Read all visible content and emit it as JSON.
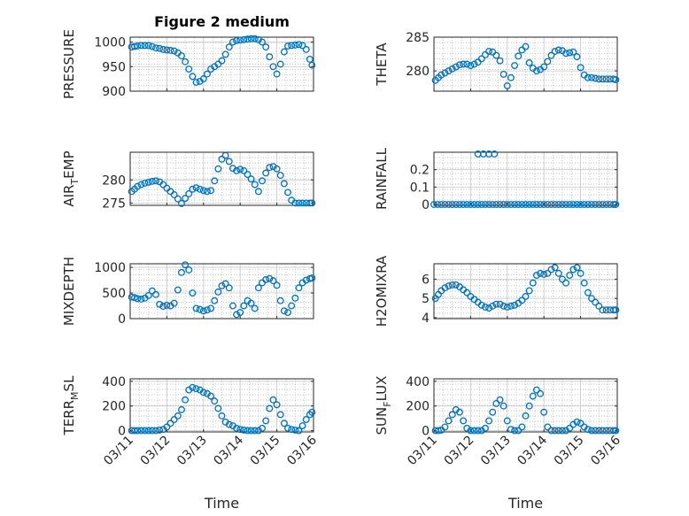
{
  "chart_data": {
    "type": "scatter",
    "title": "Figure 2 medium",
    "marker_color": "#0072BD",
    "marker": "open-circle",
    "grid": "dotted",
    "x_domain_days": [
      "03/11",
      "03/16"
    ],
    "x_tick_labels": [
      "03/11",
      "03/12",
      "03/13",
      "03/14",
      "03/15",
      "03/16"
    ],
    "xlabel": "Time",
    "panels": [
      {
        "id": "pressure",
        "ylabel": "PRESSURE",
        "ylabel_sub": "",
        "ylabel_tail": "",
        "ylim": [
          900,
          1010
        ],
        "yticks": [
          900,
          950,
          1000
        ],
        "ytick_labels": [
          "900",
          "950",
          "1000"
        ],
        "x": [
          0.04,
          0.12,
          0.2,
          0.3,
          0.4,
          0.5,
          0.6,
          0.7,
          0.8,
          0.9,
          1.0,
          1.1,
          1.2,
          1.3,
          1.4,
          1.5,
          1.6,
          1.7,
          1.8,
          1.9,
          2.0,
          2.1,
          2.2,
          2.3,
          2.4,
          2.5,
          2.6,
          2.7,
          2.8,
          2.9,
          3.0,
          3.1,
          3.2,
          3.3,
          3.4,
          3.5,
          3.6,
          3.7,
          3.8,
          3.9,
          4.0,
          4.1,
          4.2,
          4.3,
          4.4,
          4.5,
          4.6,
          4.7,
          4.8,
          4.9,
          4.96
        ],
        "y": [
          990,
          991,
          992,
          993,
          993,
          993,
          991,
          988,
          987,
          985,
          984,
          983,
          982,
          978,
          972,
          960,
          945,
          930,
          918,
          920,
          925,
          935,
          945,
          950,
          955,
          962,
          975,
          990,
          1000,
          1003,
          1004,
          1005,
          1006,
          1007,
          1007,
          1005,
          1000,
          990,
          970,
          950,
          935,
          955,
          980,
          992,
          993,
          994,
          995,
          993,
          985,
          965,
          953
        ]
      },
      {
        "id": "theta",
        "ylabel": "THETA",
        "ylabel_sub": "",
        "ylabel_tail": "",
        "ylim": [
          277,
          285
        ],
        "yticks": [
          280,
          285
        ],
        "ytick_labels": [
          "280",
          "285"
        ],
        "x": [
          0.04,
          0.12,
          0.2,
          0.3,
          0.4,
          0.5,
          0.6,
          0.7,
          0.8,
          0.9,
          1.0,
          1.1,
          1.2,
          1.3,
          1.4,
          1.5,
          1.6,
          1.7,
          1.8,
          1.9,
          2.0,
          2.1,
          2.2,
          2.3,
          2.4,
          2.5,
          2.6,
          2.7,
          2.8,
          2.9,
          3.0,
          3.1,
          3.2,
          3.3,
          3.4,
          3.5,
          3.6,
          3.7,
          3.8,
          3.9,
          4.0,
          4.1,
          4.2,
          4.3,
          4.4,
          4.5,
          4.6,
          4.7,
          4.8,
          4.9,
          4.96
        ],
        "y": [
          278.6,
          279.0,
          279.4,
          279.7,
          280.0,
          280.3,
          280.6,
          280.9,
          281.0,
          281.0,
          280.8,
          281.0,
          281.3,
          281.8,
          282.4,
          282.9,
          282.8,
          282.3,
          281.5,
          279.5,
          277.8,
          279.0,
          280.8,
          282.2,
          283.1,
          283.6,
          281.2,
          280.4,
          280.0,
          280.2,
          280.6,
          281.4,
          282.3,
          282.9,
          283.1,
          283.0,
          282.6,
          282.7,
          282.8,
          282.1,
          280.5,
          279.4,
          279.0,
          279.0,
          278.9,
          278.8,
          278.8,
          278.8,
          278.8,
          278.8,
          278.7
        ]
      },
      {
        "id": "air-temp",
        "ylabel": "AIR",
        "ylabel_sub": "T",
        "ylabel_tail": "EMP",
        "ylim": [
          274.5,
          286
        ],
        "yticks": [
          275,
          280
        ],
        "ytick_labels": [
          "275",
          "280"
        ],
        "x": [
          0.04,
          0.12,
          0.2,
          0.3,
          0.4,
          0.5,
          0.6,
          0.7,
          0.8,
          0.9,
          1.0,
          1.1,
          1.2,
          1.3,
          1.4,
          1.5,
          1.6,
          1.7,
          1.8,
          1.9,
          2.0,
          2.1,
          2.2,
          2.3,
          2.4,
          2.5,
          2.6,
          2.7,
          2.8,
          2.9,
          3.0,
          3.1,
          3.2,
          3.3,
          3.4,
          3.5,
          3.6,
          3.7,
          3.8,
          3.9,
          4.0,
          4.1,
          4.2,
          4.3,
          4.4,
          4.5,
          4.6,
          4.7,
          4.8,
          4.9,
          4.96
        ],
        "y": [
          277.5,
          278.0,
          278.6,
          279.0,
          279.3,
          279.5,
          279.7,
          279.8,
          279.6,
          279.0,
          278.2,
          277.5,
          276.8,
          275.9,
          274.9,
          276.0,
          277.0,
          278.0,
          278.3,
          278.0,
          277.7,
          277.5,
          277.7,
          279.8,
          282.4,
          284.5,
          285.3,
          284.0,
          282.5,
          282.0,
          282.3,
          282.0,
          281.2,
          280.2,
          279.0,
          277.5,
          279.8,
          281.5,
          282.7,
          282.9,
          282.4,
          281.0,
          279.2,
          277.3,
          275.6,
          275.0,
          275.0,
          275.0,
          275.0,
          275.0,
          275.0
        ]
      },
      {
        "id": "rainfall",
        "ylabel": "RAINFALL",
        "ylabel_sub": "",
        "ylabel_tail": "",
        "ylim": [
          -0.005,
          0.3
        ],
        "yticks": [
          0,
          0.1,
          0.2
        ],
        "ytick_labels": [
          "0",
          "0.1",
          "0.2"
        ],
        "x": [
          0.0,
          0.1,
          0.2,
          0.3,
          0.4,
          0.5,
          0.6,
          0.7,
          0.8,
          0.9,
          1.0,
          1.1,
          1.2,
          1.3,
          1.4,
          1.5,
          1.6,
          1.7,
          1.8,
          1.9,
          2.0,
          2.1,
          2.2,
          2.3,
          2.4,
          2.5,
          2.6,
          2.7,
          2.8,
          2.9,
          3.0,
          3.1,
          3.2,
          3.3,
          3.4,
          3.5,
          3.6,
          3.7,
          3.8,
          3.9,
          4.0,
          4.1,
          4.2,
          4.3,
          4.4,
          4.5,
          4.6,
          4.7,
          4.8,
          4.9,
          4.96,
          1.2,
          1.35,
          1.5,
          1.65
        ],
        "y": [
          0,
          0,
          0,
          0,
          0,
          0,
          0,
          0,
          0,
          0,
          0,
          0,
          0,
          0,
          0,
          0,
          0,
          0,
          0,
          0,
          0,
          0,
          0,
          0,
          0,
          0,
          0,
          0,
          0,
          0,
          0,
          0,
          0,
          0,
          0,
          0,
          0,
          0,
          0,
          0,
          0,
          0,
          0,
          0,
          0,
          0,
          0,
          0,
          0,
          0,
          0,
          0.29,
          0.29,
          0.29,
          0.29
        ]
      },
      {
        "id": "mixdepth",
        "ylabel": "MIXDEPTH",
        "ylabel_sub": "",
        "ylabel_tail": "",
        "ylim": [
          0,
          1070
        ],
        "yticks": [
          0,
          500,
          1000
        ],
        "ytick_labels": [
          "0",
          "500",
          "1000"
        ],
        "x": [
          0.04,
          0.12,
          0.2,
          0.3,
          0.4,
          0.5,
          0.6,
          0.7,
          0.8,
          0.9,
          1.0,
          1.1,
          1.2,
          1.3,
          1.4,
          1.5,
          1.6,
          1.7,
          1.8,
          1.9,
          2.0,
          2.1,
          2.2,
          2.3,
          2.4,
          2.5,
          2.6,
          2.7,
          2.8,
          2.9,
          3.0,
          3.1,
          3.2,
          3.3,
          3.4,
          3.5,
          3.6,
          3.7,
          3.8,
          3.9,
          4.0,
          4.1,
          4.2,
          4.3,
          4.4,
          4.5,
          4.6,
          4.7,
          4.8,
          4.9,
          4.96
        ],
        "y": [
          420,
          410,
          390,
          380,
          400,
          450,
          540,
          470,
          280,
          240,
          260,
          250,
          300,
          560,
          900,
          1050,
          950,
          500,
          200,
          180,
          150,
          170,
          200,
          350,
          520,
          640,
          680,
          600,
          250,
          80,
          120,
          250,
          350,
          300,
          200,
          600,
          700,
          760,
          780,
          740,
          650,
          350,
          150,
          120,
          250,
          400,
          600,
          700,
          750,
          780,
          790
        ]
      },
      {
        "id": "h2omixra",
        "ylabel": "H2OMIXRA",
        "ylabel_sub": "",
        "ylabel_tail": "",
        "ylim": [
          3.95,
          6.8
        ],
        "yticks": [
          4,
          5,
          6
        ],
        "ytick_labels": [
          "4",
          "5",
          "6"
        ],
        "x": [
          0.04,
          0.12,
          0.2,
          0.3,
          0.4,
          0.5,
          0.6,
          0.7,
          0.8,
          0.9,
          1.0,
          1.1,
          1.2,
          1.3,
          1.4,
          1.5,
          1.6,
          1.7,
          1.8,
          1.9,
          2.0,
          2.1,
          2.2,
          2.3,
          2.4,
          2.5,
          2.6,
          2.7,
          2.8,
          2.9,
          3.0,
          3.1,
          3.2,
          3.3,
          3.4,
          3.5,
          3.6,
          3.7,
          3.8,
          3.9,
          4.0,
          4.1,
          4.2,
          4.3,
          4.4,
          4.5,
          4.6,
          4.7,
          4.8,
          4.9,
          4.96
        ],
        "y": [
          5.0,
          5.2,
          5.4,
          5.55,
          5.65,
          5.7,
          5.7,
          5.6,
          5.45,
          5.3,
          5.1,
          4.95,
          4.8,
          4.65,
          4.55,
          4.5,
          4.6,
          4.7,
          4.7,
          4.6,
          4.55,
          4.6,
          4.65,
          4.75,
          4.9,
          5.1,
          5.4,
          5.8,
          6.2,
          6.3,
          6.25,
          6.3,
          6.5,
          6.6,
          6.3,
          6.0,
          5.8,
          6.2,
          6.5,
          6.6,
          6.3,
          5.8,
          5.3,
          5.0,
          4.8,
          4.6,
          4.4,
          4.4,
          4.4,
          4.4,
          4.4
        ]
      },
      {
        "id": "terr-msl",
        "ylabel": "TERR",
        "ylabel_sub": "M",
        "ylabel_tail": "SL",
        "ylim": [
          -10,
          420
        ],
        "yticks": [
          0,
          200,
          400
        ],
        "ytick_labels": [
          "0",
          "200",
          "400"
        ],
        "x": [
          0.04,
          0.12,
          0.2,
          0.3,
          0.4,
          0.5,
          0.6,
          0.7,
          0.8,
          0.9,
          1.0,
          1.1,
          1.2,
          1.3,
          1.4,
          1.5,
          1.6,
          1.7,
          1.8,
          1.9,
          2.0,
          2.1,
          2.2,
          2.3,
          2.4,
          2.5,
          2.6,
          2.7,
          2.8,
          2.9,
          3.0,
          3.1,
          3.2,
          3.3,
          3.4,
          3.5,
          3.6,
          3.7,
          3.8,
          3.9,
          4.0,
          4.1,
          4.2,
          4.3,
          4.4,
          4.5,
          4.6,
          4.7,
          4.8,
          4.9,
          4.96
        ],
        "y": [
          0,
          0,
          0,
          0,
          0,
          0,
          0,
          0,
          5,
          10,
          30,
          60,
          90,
          120,
          170,
          250,
          330,
          350,
          340,
          330,
          310,
          300,
          280,
          240,
          180,
          120,
          70,
          50,
          40,
          20,
          10,
          5,
          0,
          0,
          0,
          0,
          20,
          80,
          180,
          250,
          210,
          130,
          60,
          20,
          10,
          5,
          0,
          40,
          90,
          130,
          150
        ]
      },
      {
        "id": "sun-flux",
        "ylabel": "SUN",
        "ylabel_sub": "F",
        "ylabel_tail": "LUX",
        "ylim": [
          -10,
          420
        ],
        "yticks": [
          0,
          200,
          400
        ],
        "ytick_labels": [
          "0",
          "200",
          "400"
        ],
        "x": [
          0.04,
          0.12,
          0.2,
          0.3,
          0.4,
          0.5,
          0.6,
          0.7,
          0.8,
          0.9,
          1.0,
          1.1,
          1.2,
          1.3,
          1.4,
          1.5,
          1.6,
          1.7,
          1.8,
          1.9,
          2.0,
          2.1,
          2.2,
          2.3,
          2.4,
          2.5,
          2.6,
          2.7,
          2.8,
          2.9,
          3.0,
          3.1,
          3.2,
          3.3,
          3.4,
          3.5,
          3.6,
          3.7,
          3.8,
          3.9,
          4.0,
          4.1,
          4.2,
          4.3,
          4.4,
          4.5,
          4.6,
          4.7,
          4.8,
          4.9,
          4.96
        ],
        "y": [
          0,
          0,
          5,
          30,
          80,
          130,
          170,
          150,
          80,
          20,
          0,
          0,
          0,
          0,
          20,
          80,
          150,
          220,
          250,
          200,
          80,
          10,
          0,
          0,
          30,
          120,
          200,
          280,
          330,
          300,
          150,
          30,
          0,
          0,
          0,
          0,
          0,
          20,
          50,
          70,
          60,
          30,
          10,
          0,
          0,
          0,
          0,
          0,
          0,
          0,
          0
        ]
      }
    ]
  }
}
